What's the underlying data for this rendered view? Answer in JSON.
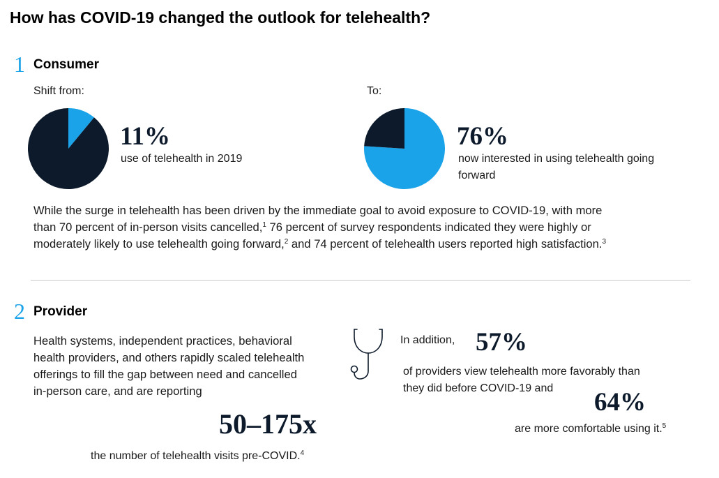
{
  "title": "How has COVID-19 changed the outlook for telehealth?",
  "colors": {
    "dark": "#0d1a2b",
    "accent": "#1aa3e8"
  },
  "consumer": {
    "number": "1",
    "heading": "Consumer",
    "shift_from": "Shift from:",
    "to": "To:",
    "stat1": {
      "value": "11%",
      "desc": "use of telehealth in 2019"
    },
    "stat2": {
      "value": "76%",
      "desc_line1": "now interested in using telehealth going",
      "desc_line2": "forward"
    },
    "paragraph": {
      "line1": "While the surge in telehealth has been driven by the immediate goal to avoid exposure to COVID-19, with more",
      "line2a": "than 70 percent of in-person visits cancelled,",
      "sup1": "1",
      "line2b": " 76 percent of survey respondents indicated they were highly or",
      "line3a": "moderately likely to use telehealth going forward,",
      "sup2": "2",
      "line3b": " and 74 percent of telehealth users reported high satisfaction.",
      "sup3": "3"
    }
  },
  "provider": {
    "number": "2",
    "heading": "Provider",
    "para": {
      "l1": "Health systems, independent practices, behavioral",
      "l2": "health providers, and others rapidly scaled telehealth",
      "l3": "offerings to fill the gap between need and cancelled",
      "l4": "in-person care, and are reporting"
    },
    "stat_range": "50–175x",
    "stat_range_desc": "the number of telehealth visits pre-COVID.",
    "stat_range_sup": "4",
    "in_addition": "In addition,",
    "stat57": "57%",
    "stat57_desc_l1": "of providers view telehealth more favorably than",
    "stat57_desc_l2": "they did before COVID-19 and",
    "stat64": "64%",
    "stat64_desc": "are more comfortable using it.",
    "stat64_sup": "5"
  },
  "chart_data": [
    {
      "type": "pie",
      "title": "",
      "labels": [
        "",
        ""
      ],
      "values": [
        11,
        89
      ],
      "colors": [
        "#1aa3e8",
        "#0d1a2b"
      ]
    },
    {
      "type": "pie",
      "title": "",
      "labels": [
        "",
        ""
      ],
      "values": [
        76,
        24
      ],
      "colors": [
        "#1aa3e8",
        "#0d1a2b"
      ]
    }
  ]
}
